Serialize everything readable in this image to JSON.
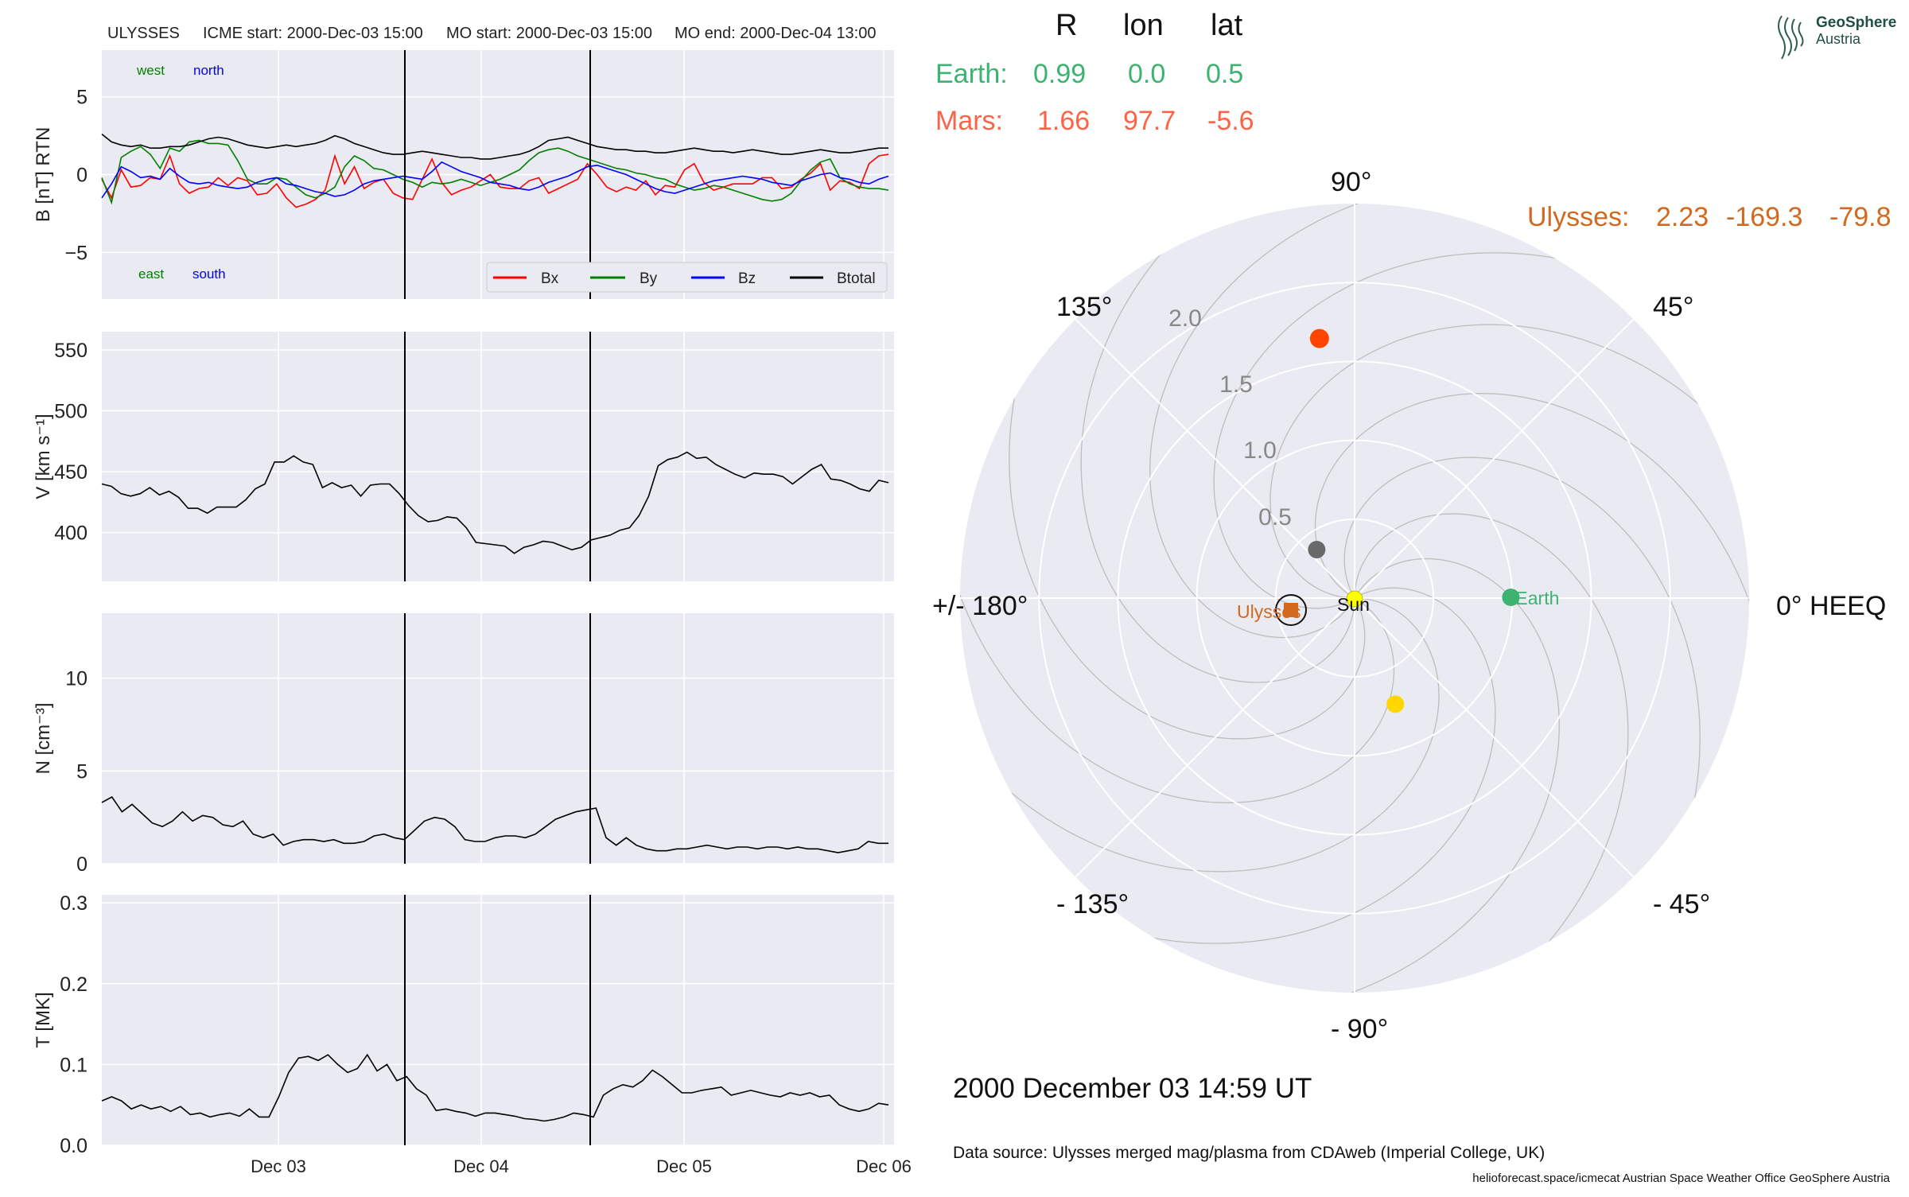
{
  "header": {
    "spacecraft": "ULYSSES",
    "icme_start": "ICME start: 2000-Dec-03 15:00",
    "mo_start": "MO start: 2000-Dec-03 15:00",
    "mo_end": "MO end: 2000-Dec-04 13:00"
  },
  "colors": {
    "bx": "#ff0000",
    "by": "#008000",
    "bz": "#0000ff",
    "btotal": "#000000",
    "earth": "#3cb371",
    "mars": "#ff6347",
    "ulysses": "#d2691e",
    "sun": "#ffff00",
    "mercury": "#696969",
    "venus": "#ffd700",
    "mars_marker": "#ff4500",
    "panel_bg": "#eaeaf2"
  },
  "legend": {
    "bx": "Bx",
    "by": "By",
    "bz": "Bz",
    "btotal": "Btotal"
  },
  "direction_labels": {
    "west": "west",
    "north": "north",
    "east": "east",
    "south": "south"
  },
  "positions_table": {
    "headers": [
      "R",
      "lon",
      "lat"
    ],
    "earth": {
      "label": "Earth:",
      "r": "0.99",
      "lon": "0.0",
      "lat": "0.5"
    },
    "mars": {
      "label": "Mars:",
      "r": "1.66",
      "lon": "97.7",
      "lat": "-5.6"
    },
    "ulysses": {
      "label": "Ulysses:",
      "r": "2.23",
      "lon": "-169.3",
      "lat": "-79.8"
    }
  },
  "polar": {
    "angle_labels": {
      "a0": "0° HEEQ",
      "a45": "45°",
      "a90": "90°",
      "a135": "135°",
      "a180": "+/- 180°",
      "am135": "- 135°",
      "am90": "- 90°",
      "am45": "- 45°"
    },
    "radial_labels": [
      "0.5",
      "1.0",
      "1.5",
      "2.0"
    ],
    "r_max": 2.5,
    "bodies": {
      "sun_label": "Sun",
      "earth_label": "Earth",
      "ulysses_label": "Ulysses"
    }
  },
  "timestamp": "2000 December 03  14:59 UT",
  "data_source": "Data source: Ulysses merged mag/plasma from CDAweb (Imperial College, UK)",
  "footer": "helioforecast.space/icmecat   Austrian Space Weather Office   GeoSphere Austria",
  "logo": {
    "line1": "GeoSphere",
    "line2": "Austria"
  },
  "chart_data": [
    {
      "type": "line",
      "ylabel": "B [nT] RTN",
      "ylim": [
        -8,
        8
      ],
      "yticks": [
        "5",
        "0",
        "−5"
      ],
      "ytick_values": [
        5,
        0,
        -5
      ],
      "x_tick_labels": [
        "Dec 03",
        "Dec 04",
        "Dec 05",
        "Dec 06"
      ],
      "series": [
        {
          "name": "Bx",
          "values": [
            -0.3,
            -1.5,
            0.3,
            -0.8,
            -0.7,
            -0.2,
            -0.3,
            1.2,
            -0.6,
            -1.2,
            -0.9,
            -0.8,
            -0.2,
            -0.7,
            -0.2,
            -0.4,
            -1.3,
            -1.2,
            -0.6,
            -1.5,
            -2.1,
            -1.9,
            -1.6,
            -1.0,
            1.2,
            -0.6,
            0.5,
            -0.9,
            -0.5,
            -0.3,
            -1.2,
            -1.5,
            -1.6,
            -0.3,
            1.0,
            -0.5,
            -1.3,
            -1.0,
            -0.8,
            -0.4,
            0.0,
            -0.8,
            -0.9,
            -0.9,
            -0.4,
            -0.2,
            -1.2,
            -0.9,
            -0.6,
            -0.3,
            0.7,
            0.0,
            -0.8,
            -1.1,
            -0.8,
            -1.0,
            -0.4,
            -1.3,
            -0.7,
            -0.8,
            0.3,
            0.7,
            -0.5,
            -1.0,
            -0.8,
            -0.6,
            -0.6,
            -0.6,
            -0.2,
            -0.2,
            -0.9,
            -0.8,
            -0.3,
            0.1,
            0.7,
            -1.0,
            -0.4,
            -0.5,
            -0.9,
            0.7,
            1.2,
            1.3
          ]
        },
        {
          "name": "By",
          "values": [
            -0.2,
            -1.8,
            1.1,
            1.5,
            1.8,
            1.3,
            0.4,
            1.7,
            1.5,
            2.1,
            2.2,
            2.0,
            2.0,
            1.9,
            0.9,
            -0.3,
            -0.6,
            -0.6,
            -0.2,
            -0.3,
            -0.8,
            -1.3,
            -1.5,
            -1.2,
            -0.8,
            0.5,
            1.2,
            0.9,
            0.4,
            0.3,
            0.0,
            -0.3,
            -0.5,
            -0.8,
            -0.5,
            -0.6,
            -0.5,
            -0.3,
            -0.5,
            -0.7,
            -0.5,
            -0.3,
            0.0,
            0.3,
            0.9,
            1.4,
            1.6,
            1.7,
            1.5,
            1.2,
            1.0,
            0.8,
            0.6,
            0.4,
            0.3,
            0.1,
            0.0,
            -0.2,
            -0.3,
            -0.6,
            -0.8,
            -1.0,
            -0.9,
            -0.7,
            -0.8,
            -1.0,
            -1.2,
            -1.4,
            -1.6,
            -1.7,
            -1.6,
            -1.2,
            -0.4,
            0.3,
            0.8,
            1.0,
            -0.2,
            -0.6,
            -0.8,
            -0.9,
            -0.9,
            -1.0
          ]
        },
        {
          "name": "Bz",
          "values": [
            -1.5,
            -0.6,
            0.5,
            0.2,
            -0.2,
            -0.1,
            -0.3,
            0.4,
            -0.1,
            -0.5,
            -0.6,
            -0.5,
            -0.7,
            -0.8,
            -0.9,
            -0.8,
            -0.5,
            -0.3,
            -0.2,
            -0.6,
            -0.7,
            -0.9,
            -1.1,
            -1.2,
            -1.4,
            -1.3,
            -1.0,
            -0.6,
            -0.4,
            -0.3,
            -0.2,
            -0.1,
            -0.2,
            -0.3,
            0.2,
            0.8,
            0.5,
            0.2,
            0.0,
            -0.2,
            -0.5,
            -0.6,
            -0.7,
            -0.9,
            -1.0,
            -0.8,
            -0.5,
            -0.3,
            -0.1,
            0.2,
            0.5,
            0.6,
            0.4,
            0.2,
            0.0,
            -0.3,
            -0.6,
            -0.9,
            -1.1,
            -1.2,
            -1.0,
            -0.8,
            -0.6,
            -0.4,
            -0.3,
            -0.2,
            -0.1,
            -0.2,
            -0.3,
            -0.5,
            -0.6,
            -0.7,
            -0.4,
            -0.2,
            0.0,
            0.1,
            -0.2,
            -0.3,
            -0.5,
            -0.6,
            -0.3,
            -0.1
          ]
        },
        {
          "name": "Btotal",
          "values": [
            2.6,
            2.1,
            1.9,
            1.8,
            1.9,
            1.7,
            1.7,
            1.8,
            1.8,
            1.9,
            2.1,
            2.3,
            2.4,
            2.3,
            2.1,
            1.9,
            1.8,
            1.7,
            1.8,
            1.9,
            1.8,
            1.9,
            2.0,
            2.2,
            2.5,
            2.3,
            2.0,
            1.8,
            1.6,
            1.4,
            1.3,
            1.3,
            1.4,
            1.5,
            1.4,
            1.3,
            1.2,
            1.1,
            1.1,
            1.0,
            1.0,
            1.1,
            1.2,
            1.3,
            1.5,
            1.8,
            2.2,
            2.3,
            2.4,
            2.2,
            2.0,
            1.8,
            1.7,
            1.6,
            1.6,
            1.5,
            1.5,
            1.4,
            1.4,
            1.5,
            1.6,
            1.7,
            1.6,
            1.5,
            1.5,
            1.4,
            1.5,
            1.6,
            1.5,
            1.4,
            1.3,
            1.3,
            1.4,
            1.5,
            1.6,
            1.5,
            1.4,
            1.4,
            1.5,
            1.6,
            1.7,
            1.7
          ]
        }
      ],
      "vlines": [
        0.3,
        0.53
      ],
      "grid": true
    },
    {
      "type": "line",
      "ylabel": "V [km s⁻¹]",
      "ylim": [
        360,
        565
      ],
      "yticks": [
        "550",
        "500",
        "450",
        "400"
      ],
      "ytick_values": [
        550,
        500,
        450,
        400
      ],
      "series": [
        {
          "name": "V",
          "values": [
            440,
            438,
            432,
            430,
            432,
            437,
            431,
            434,
            429,
            420,
            420,
            416,
            421,
            421,
            421,
            427,
            436,
            440,
            458,
            458,
            463,
            458,
            456,
            437,
            441,
            437,
            439,
            430,
            439,
            440,
            440,
            432,
            422,
            414,
            409,
            410,
            413,
            412,
            404,
            392,
            391,
            390,
            389,
            383,
            388,
            390,
            393,
            392,
            389,
            386,
            388,
            394,
            396,
            398,
            402,
            404,
            414,
            430,
            455,
            460,
            462,
            466,
            461,
            462,
            456,
            452,
            448,
            445,
            449,
            448,
            448,
            446,
            440,
            446,
            452,
            456,
            444,
            443,
            440,
            436,
            434,
            443,
            441
          ]
        }
      ],
      "grid": true
    },
    {
      "type": "line",
      "ylabel": "N [cm⁻³]",
      "ylim": [
        0,
        13.5
      ],
      "yticks": [
        "10",
        "5",
        "0"
      ],
      "ytick_values": [
        10,
        5,
        0
      ],
      "series": [
        {
          "name": "N",
          "values": [
            3.3,
            3.6,
            2.8,
            3.2,
            2.7,
            2.2,
            2.0,
            2.3,
            2.8,
            2.3,
            2.6,
            2.5,
            2.1,
            2.0,
            2.3,
            1.6,
            1.4,
            1.6,
            1.0,
            1.2,
            1.3,
            1.3,
            1.2,
            1.3,
            1.1,
            1.1,
            1.2,
            1.5,
            1.6,
            1.4,
            1.3,
            1.8,
            2.3,
            2.5,
            2.4,
            2.0,
            1.3,
            1.2,
            1.2,
            1.4,
            1.5,
            1.5,
            1.4,
            1.6,
            2.0,
            2.4,
            2.6,
            2.8,
            2.9,
            3.0,
            1.4,
            1.0,
            1.4,
            1.0,
            0.8,
            0.7,
            0.7,
            0.8,
            0.8,
            0.9,
            1.0,
            0.9,
            0.8,
            0.9,
            0.9,
            0.8,
            0.9,
            0.9,
            0.8,
            0.9,
            0.8,
            0.8,
            0.7,
            0.6,
            0.7,
            0.8,
            1.2,
            1.1,
            1.1
          ]
        }
      ],
      "grid": true
    },
    {
      "type": "line",
      "ylabel": "T [MK]",
      "ylim": [
        0,
        0.31
      ],
      "yticks": [
        "0.3",
        "0.2",
        "0.1",
        "0.0"
      ],
      "ytick_values": [
        0.3,
        0.2,
        0.1,
        0.0
      ],
      "series": [
        {
          "name": "T",
          "values": [
            0.055,
            0.06,
            0.055,
            0.045,
            0.05,
            0.045,
            0.048,
            0.042,
            0.048,
            0.038,
            0.04,
            0.035,
            0.038,
            0.04,
            0.036,
            0.045,
            0.035,
            0.035,
            0.06,
            0.09,
            0.108,
            0.11,
            0.105,
            0.112,
            0.1,
            0.09,
            0.095,
            0.112,
            0.092,
            0.1,
            0.08,
            0.085,
            0.07,
            0.062,
            0.043,
            0.045,
            0.042,
            0.04,
            0.036,
            0.04,
            0.04,
            0.038,
            0.036,
            0.033,
            0.032,
            0.03,
            0.032,
            0.035,
            0.04,
            0.038,
            0.035,
            0.062,
            0.07,
            0.075,
            0.072,
            0.08,
            0.093,
            0.085,
            0.075,
            0.065,
            0.065,
            0.068,
            0.07,
            0.072,
            0.062,
            0.065,
            0.068,
            0.065,
            0.062,
            0.06,
            0.065,
            0.062,
            0.065,
            0.06,
            0.062,
            0.05,
            0.045,
            0.042,
            0.045,
            0.052,
            0.05
          ]
        }
      ],
      "grid": true
    }
  ]
}
